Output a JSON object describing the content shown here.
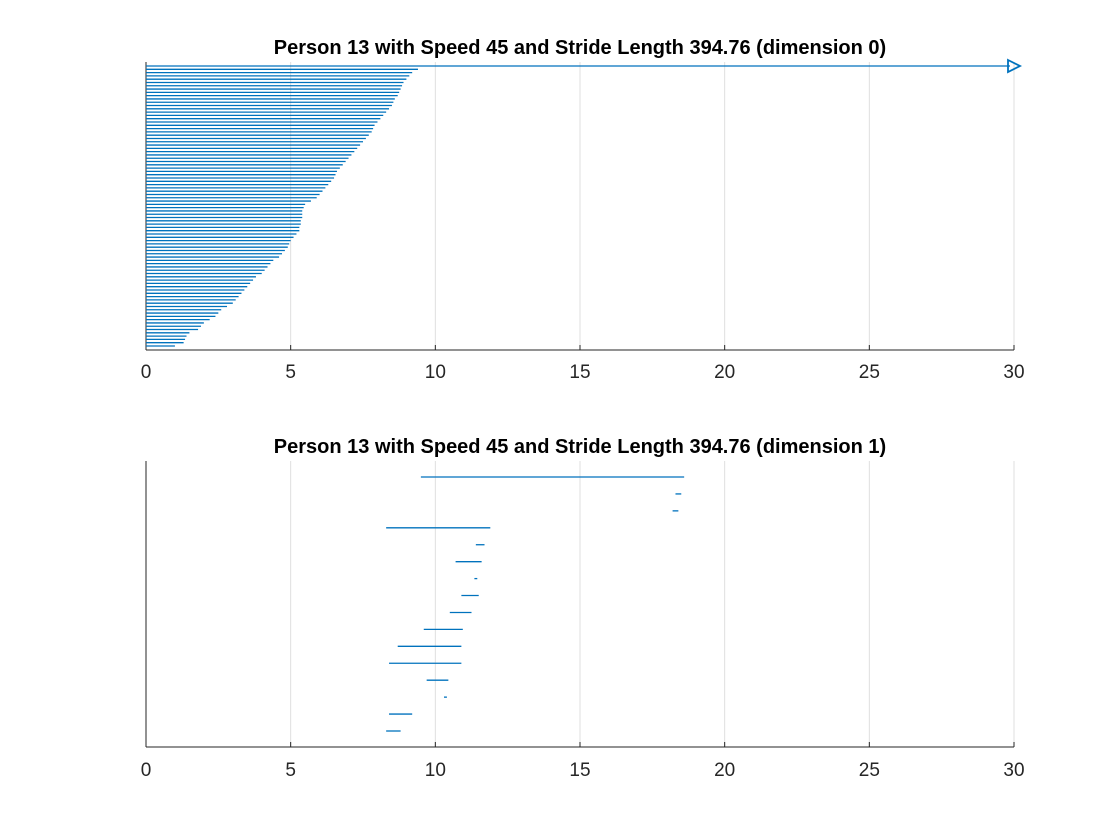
{
  "chart_data": [
    {
      "type": "barcode",
      "title": "Person 13 with Speed 45 and Stride Length 394.76 (dimension 0)",
      "xlim": [
        0,
        30
      ],
      "xticks": [
        "0",
        "5",
        "10",
        "15",
        "20",
        "25",
        "30"
      ],
      "grid": "vertical",
      "color": "#0072bd",
      "infinite_bar": {
        "start": 0,
        "end": "infinity"
      },
      "bars_end_values": [
        1.0,
        1.3,
        1.35,
        1.4,
        1.5,
        1.8,
        1.9,
        2.0,
        2.2,
        2.4,
        2.5,
        2.6,
        2.8,
        3.0,
        3.1,
        3.2,
        3.3,
        3.4,
        3.5,
        3.6,
        3.7,
        3.8,
        4.0,
        4.1,
        4.2,
        4.3,
        4.4,
        4.6,
        4.7,
        4.8,
        4.9,
        4.95,
        5.0,
        5.1,
        5.2,
        5.3,
        5.3,
        5.35,
        5.35,
        5.4,
        5.4,
        5.4,
        5.45,
        5.5,
        5.7,
        5.9,
        6.0,
        6.1,
        6.2,
        6.3,
        6.4,
        6.5,
        6.55,
        6.6,
        6.7,
        6.8,
        6.9,
        7.0,
        7.1,
        7.2,
        7.3,
        7.4,
        7.5,
        7.6,
        7.7,
        7.8,
        7.85,
        7.9,
        8.0,
        8.1,
        8.2,
        8.3,
        8.4,
        8.5,
        8.55,
        8.6,
        8.7,
        8.75,
        8.8,
        8.85,
        8.9,
        9.0,
        9.1,
        9.2,
        9.4
      ]
    },
    {
      "type": "barcode",
      "title": "Person 13 with Speed 45 and Stride Length 394.76 (dimension 1)",
      "xlim": [
        0,
        30
      ],
      "xticks": [
        "0",
        "5",
        "10",
        "15",
        "20",
        "25",
        "30"
      ],
      "grid": "vertical",
      "color": "#0072bd",
      "bars": [
        [
          9.5,
          18.6
        ],
        [
          18.3,
          18.5
        ],
        [
          18.2,
          18.4
        ],
        [
          8.3,
          11.9
        ],
        [
          11.4,
          11.7
        ],
        [
          10.7,
          11.6
        ],
        [
          11.35,
          11.45
        ],
        [
          10.9,
          11.5
        ],
        [
          10.5,
          11.25
        ],
        [
          9.6,
          10.95
        ],
        [
          8.7,
          10.9
        ],
        [
          8.4,
          10.9
        ],
        [
          9.7,
          10.45
        ],
        [
          10.3,
          10.4
        ],
        [
          8.4,
          9.2
        ],
        [
          8.3,
          8.8
        ]
      ]
    }
  ]
}
